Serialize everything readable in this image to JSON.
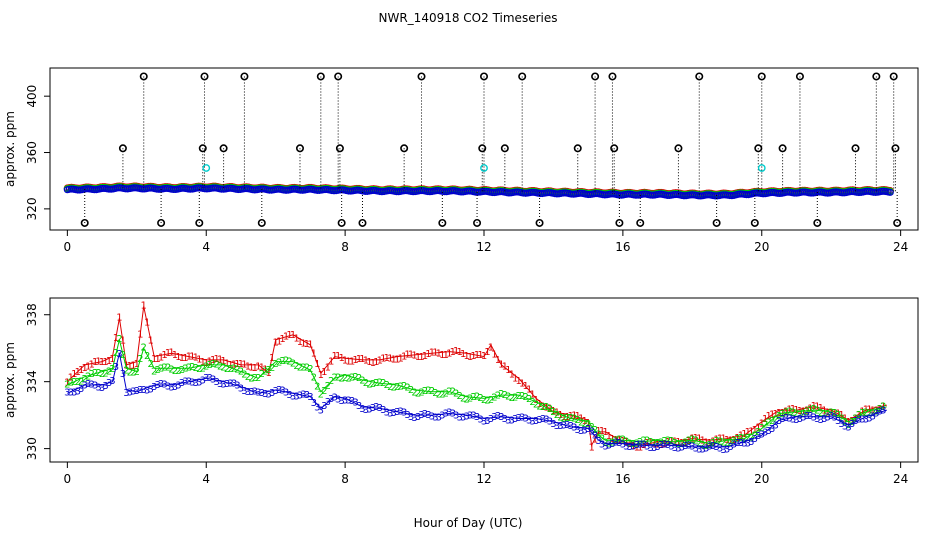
{
  "title": "NWR_140918  CO2 Timeseries",
  "xlabel": "Hour of Day (UTC)",
  "colors": {
    "series1": "#dd0000",
    "series2": "#00cc00",
    "series3": "#0000cc",
    "outlier": "#000000",
    "cyan": "#00cccc"
  },
  "chart_data": [
    {
      "type": "scatter",
      "ylabel": "approx. ppm",
      "xlim": [
        -0.5,
        24.5
      ],
      "ylim": [
        305,
        420
      ],
      "xticks": [
        0,
        4,
        8,
        12,
        16,
        20,
        24
      ],
      "yticks": [
        320,
        360,
        400
      ],
      "baseline_keypoints": {
        "x": [
          0,
          1,
          1.5,
          2,
          3,
          4,
          5,
          6,
          7,
          8,
          9,
          10,
          11,
          12,
          13,
          14,
          15,
          16,
          17,
          18,
          19,
          20,
          21,
          22,
          23,
          23.7
        ],
        "y": [
          334,
          334.5,
          335,
          335,
          334.5,
          335,
          334.5,
          334,
          334,
          333.5,
          333,
          333,
          333,
          332.5,
          332,
          331.5,
          331,
          330.5,
          330.5,
          330,
          330,
          331.5,
          332,
          332,
          332.5,
          332.5
        ]
      },
      "outliers_high": [
        {
          "x": 1.6,
          "y": 363
        },
        {
          "x": 2.2,
          "y": 414
        },
        {
          "x": 3.9,
          "y": 363
        },
        {
          "x": 3.95,
          "y": 414
        },
        {
          "x": 4.5,
          "y": 363
        },
        {
          "x": 5.1,
          "y": 414
        },
        {
          "x": 6.7,
          "y": 363
        },
        {
          "x": 7.3,
          "y": 414
        },
        {
          "x": 7.8,
          "y": 414
        },
        {
          "x": 7.85,
          "y": 363
        },
        {
          "x": 9.7,
          "y": 363
        },
        {
          "x": 10.2,
          "y": 414
        },
        {
          "x": 11.95,
          "y": 363
        },
        {
          "x": 12.0,
          "y": 414
        },
        {
          "x": 12.6,
          "y": 363
        },
        {
          "x": 13.1,
          "y": 414
        },
        {
          "x": 14.7,
          "y": 363
        },
        {
          "x": 15.2,
          "y": 414
        },
        {
          "x": 15.7,
          "y": 414
        },
        {
          "x": 15.75,
          "y": 363
        },
        {
          "x": 17.6,
          "y": 363
        },
        {
          "x": 18.2,
          "y": 414
        },
        {
          "x": 19.9,
          "y": 363
        },
        {
          "x": 20.0,
          "y": 414
        },
        {
          "x": 20.6,
          "y": 363
        },
        {
          "x": 21.1,
          "y": 414
        },
        {
          "x": 22.7,
          "y": 363
        },
        {
          "x": 23.3,
          "y": 414
        },
        {
          "x": 23.8,
          "y": 414
        },
        {
          "x": 23.85,
          "y": 363
        }
      ],
      "outliers_low": [
        {
          "x": 0.5,
          "y": 310
        },
        {
          "x": 2.7,
          "y": 310
        },
        {
          "x": 3.8,
          "y": 310
        },
        {
          "x": 5.6,
          "y": 310
        },
        {
          "x": 7.9,
          "y": 310
        },
        {
          "x": 8.5,
          "y": 310
        },
        {
          "x": 10.8,
          "y": 310
        },
        {
          "x": 11.8,
          "y": 310
        },
        {
          "x": 13.6,
          "y": 310
        },
        {
          "x": 15.9,
          "y": 310
        },
        {
          "x": 16.5,
          "y": 310
        },
        {
          "x": 18.7,
          "y": 310
        },
        {
          "x": 19.8,
          "y": 310
        },
        {
          "x": 21.6,
          "y": 310
        },
        {
          "x": 23.9,
          "y": 310
        }
      ],
      "cyan_points": [
        {
          "x": 4.0,
          "y": 349
        },
        {
          "x": 12.0,
          "y": 349
        },
        {
          "x": 20.0,
          "y": 349
        }
      ]
    },
    {
      "type": "scatter",
      "ylabel": "approx. ppm",
      "xlim": [
        -0.5,
        24.5
      ],
      "ylim": [
        329.2,
        339
      ],
      "xticks": [
        0,
        4,
        8,
        12,
        16,
        20,
        24
      ],
      "yticks": [
        330,
        334,
        338
      ],
      "series": [
        {
          "name": "1",
          "x": [
            0,
            0.5,
            1,
            1.3,
            1.5,
            1.7,
            2,
            2.2,
            2.5,
            3,
            3.5,
            4,
            4.5,
            5,
            5.5,
            5.8,
            6,
            6.5,
            7,
            7.3,
            7.7,
            8,
            8.5,
            9,
            9.5,
            10,
            10.5,
            11,
            11.5,
            12,
            12.2,
            12.5,
            13,
            13.5,
            14,
            14.5,
            15,
            15.1,
            15.3,
            15.5,
            16,
            16.5,
            17,
            17.5,
            18,
            18.5,
            19,
            19.5,
            20,
            20.5,
            21,
            21.5,
            22,
            22.5,
            23,
            23.6
          ],
          "y": [
            334,
            335,
            335.2,
            335.5,
            337.8,
            335,
            335.2,
            338.5,
            335.5,
            335.7,
            335.5,
            335.3,
            335.3,
            335,
            335,
            334.5,
            336.5,
            336.8,
            336.2,
            334.5,
            335.5,
            335.4,
            335.3,
            335.3,
            335.5,
            335.6,
            335.7,
            335.8,
            335.7,
            335.5,
            336.2,
            335,
            334.2,
            333,
            332.2,
            332,
            331.7,
            330.2,
            331,
            331,
            330.4,
            330.2,
            330.4,
            330.4,
            330.6,
            330.5,
            330.6,
            330.8,
            331.6,
            332.3,
            332.3,
            332.5,
            332.3,
            331.7,
            332.3,
            332.6
          ]
        },
        {
          "name": "2",
          "x": [
            0,
            0.5,
            1,
            1.3,
            1.5,
            1.7,
            2,
            2.2,
            2.5,
            3,
            3.5,
            4,
            4.5,
            5,
            5.5,
            6,
            6.5,
            7,
            7.3,
            7.7,
            8,
            8.5,
            9,
            9.5,
            10,
            10.5,
            11,
            11.5,
            12,
            12.5,
            13,
            13.5,
            14,
            14.5,
            15,
            15.3,
            15.5,
            16,
            16.5,
            17,
            17.5,
            18,
            18.5,
            19,
            19.5,
            20,
            20.5,
            21,
            21.5,
            22,
            22.5,
            23,
            23.6
          ],
          "y": [
            333.8,
            334.3,
            334.6,
            334.8,
            336.5,
            334.8,
            334.6,
            336,
            334.8,
            334.8,
            334.8,
            335,
            335,
            334.6,
            334.2,
            335.2,
            335.2,
            334.7,
            333.4,
            334.2,
            334.4,
            334.1,
            333.9,
            333.8,
            333.5,
            333.4,
            333.4,
            333.1,
            333,
            333.2,
            333.2,
            332.8,
            332.2,
            331.8,
            331.6,
            330.8,
            330.5,
            330.5,
            330.4,
            330.5,
            330.4,
            330.5,
            330.3,
            330.5,
            330.6,
            331.2,
            332.1,
            332.2,
            332.3,
            332.2,
            331.6,
            332.2,
            332.5
          ]
        },
        {
          "name": "3",
          "x": [
            0,
            0.5,
            1,
            1.3,
            1.5,
            1.7,
            2,
            2.5,
            3,
            3.5,
            4,
            4.5,
            5,
            5.5,
            6,
            6.5,
            7,
            7.3,
            7.7,
            8,
            8.5,
            9,
            9.5,
            10,
            10.5,
            11,
            11.5,
            12,
            12.5,
            13,
            13.5,
            14,
            14.5,
            15,
            15.3,
            15.5,
            16,
            16.5,
            17,
            17.5,
            18,
            18.5,
            19,
            19.5,
            20,
            20.5,
            21,
            21.5,
            22,
            22.5,
            23,
            23.6
          ],
          "y": [
            333.3,
            333.8,
            333.8,
            334,
            335.7,
            333.5,
            333.4,
            333.8,
            333.8,
            334,
            334.2,
            334,
            333.7,
            333.3,
            333.5,
            333.3,
            333.1,
            332.4,
            333.1,
            333,
            332.5,
            332.4,
            332.2,
            332,
            332,
            332.1,
            332,
            331.8,
            331.9,
            331.8,
            331.8,
            331.6,
            331.3,
            331.2,
            330.5,
            330.3,
            330.3,
            330.2,
            330.2,
            330.2,
            330.1,
            330.1,
            330.1,
            330.4,
            330.8,
            331.7,
            331.9,
            331.9,
            331.9,
            331.4,
            331.9,
            332.3
          ]
        }
      ]
    }
  ]
}
